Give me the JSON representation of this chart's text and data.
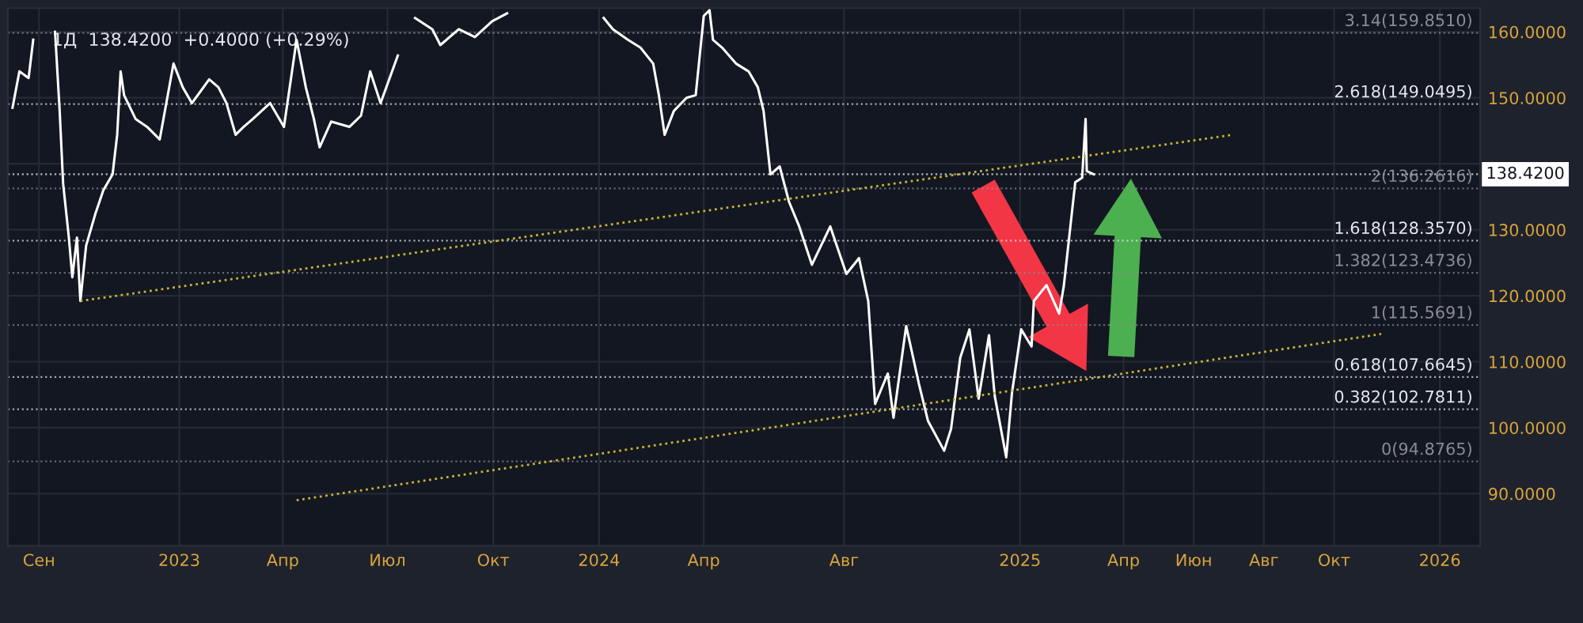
{
  "chart_data": {
    "type": "line",
    "title": "1Д  138.4200  +0.4000 (+0.29%)",
    "xlim": [
      "2022-08-05",
      "2026-02-05"
    ],
    "ylim": [
      82.1,
      163.6
    ],
    "xticks": [
      {
        "value": "2022-09-01",
        "label": "Сен"
      },
      {
        "value": "2023-01-01",
        "label": "2023"
      },
      {
        "value": "2023-04-01",
        "label": "Апр"
      },
      {
        "value": "2023-07-01",
        "label": "Июл"
      },
      {
        "value": "2023-10-01",
        "label": "Окт"
      },
      {
        "value": "2024-01-01",
        "label": "2024"
      },
      {
        "value": "2024-04-01",
        "label": "Апр"
      },
      {
        "value": "2024-08-01",
        "label": "Авг"
      },
      {
        "value": "2025-01-01",
        "label": "2025"
      },
      {
        "value": "2025-04-01",
        "label": "Апр"
      },
      {
        "value": "2025-06-01",
        "label": "Июн"
      },
      {
        "value": "2025-08-01",
        "label": "Авг"
      },
      {
        "value": "2025-10-01",
        "label": "Окт"
      },
      {
        "value": "2026-01-01",
        "label": "2026"
      }
    ],
    "yticks": [
      {
        "value": 90,
        "label": "90.0000"
      },
      {
        "value": 100,
        "label": "100.0000"
      },
      {
        "value": 110,
        "label": "110.0000"
      },
      {
        "value": 120,
        "label": "120.0000"
      },
      {
        "value": 130,
        "label": "130.0000"
      },
      {
        "value": 140,
        "label": null
      },
      {
        "value": 150,
        "label": "150.0000"
      },
      {
        "value": 160,
        "label": "160.0000"
      }
    ],
    "grid": true,
    "marker": "none",
    "series": [
      {
        "color": "#ffffff",
        "line_style": "solid",
        "x": [
          "2022-08-09",
          "2022-08-15",
          "2022-08-23",
          "2022-08-27",
          "2022-09-03",
          "2022-09-15",
          "2022-09-19",
          "2022-09-22",
          "2022-09-27",
          "2022-09-30",
          "2022-10-04",
          "2022-10-07",
          "2022-10-12",
          "2022-10-20",
          "2022-10-27",
          "2022-11-04",
          "2022-11-08",
          "2022-11-11",
          "2022-11-14",
          "2022-11-24",
          "2022-12-04",
          "2022-12-15",
          "2022-12-27",
          "2023-01-04",
          "2023-01-12",
          "2023-01-27",
          "2023-02-04",
          "2023-02-11",
          "2023-02-19",
          "2023-02-26",
          "2023-03-06",
          "2023-03-21",
          "2023-04-02",
          "2023-04-13",
          "2023-04-21",
          "2023-04-28",
          "2023-05-03",
          "2023-05-13",
          "2023-05-29",
          "2023-06-08",
          "2023-06-16",
          "2023-06-25",
          "2023-07-10",
          "2023-07-17",
          "2023-07-25",
          "2023-08-09",
          "2023-08-16",
          "2023-09-01",
          "2023-09-15",
          "2023-09-30",
          "2023-10-13",
          "2023-11-20",
          "2024-01-05",
          "2024-01-13",
          "2024-01-26",
          "2024-02-06",
          "2024-02-17",
          "2024-02-22",
          "2024-02-27",
          "2024-03-06",
          "2024-03-17",
          "2024-03-25",
          "2024-04-01",
          "2024-04-06",
          "2024-04-09",
          "2024-04-17",
          "2024-04-29",
          "2024-05-10",
          "2024-05-18",
          "2024-05-23",
          "2024-05-29",
          "2024-06-06",
          "2024-06-14",
          "2024-06-23",
          "2024-07-04",
          "2024-07-20",
          "2024-08-03",
          "2024-08-14",
          "2024-08-22",
          "2024-08-28",
          "2024-09-08",
          "2024-09-13",
          "2024-09-24",
          "2024-10-05",
          "2024-10-13",
          "2024-10-27",
          "2024-11-02",
          "2024-11-10",
          "2024-11-18",
          "2024-11-26",
          "2024-12-05",
          "2024-12-10",
          "2024-12-20",
          "2024-12-25",
          "2025-01-02",
          "2025-01-11",
          "2025-01-13",
          "2025-01-24",
          "2025-02-04",
          "2025-02-08",
          "2025-02-18",
          "2025-02-24",
          "2025-02-27",
          "2025-02-28",
          "2025-03-06"
        ],
        "values": [
          148.5,
          154,
          153,
          158.8,
          null,
          160,
          148,
          137,
          128.8,
          122.8,
          128.8,
          119.2,
          127.6,
          132.4,
          136,
          138.4,
          144.4,
          154,
          150.4,
          146.8,
          145.6,
          143.7,
          155.2,
          151.6,
          149.2,
          152.8,
          151.6,
          149.2,
          144.4,
          145.6,
          146.8,
          149.2,
          145.6,
          158.8,
          151.6,
          146.8,
          142.5,
          146.4,
          145.6,
          147.3,
          154,
          149.2,
          156.4,
          null,
          162.1,
          160.4,
          158,
          160.4,
          159.2,
          161.6,
          162.8,
          null,
          162.1,
          160.4,
          158.8,
          157.6,
          155.2,
          150.4,
          144.4,
          148,
          150,
          150.4,
          162.4,
          163.3,
          158.8,
          157.6,
          155.2,
          154,
          151.6,
          148,
          138.4,
          139.6,
          134.3,
          130.5,
          124.7,
          130.5,
          123.3,
          125.7,
          119.2,
          103.6,
          108.2,
          101.5,
          115.4,
          106.7,
          101,
          96.5,
          99.8,
          110.6,
          114.9,
          104.4,
          114,
          104.8,
          95.5,
          105.3,
          114.9,
          112.3,
          119.2,
          121.6,
          117.3,
          121.4,
          137.2,
          137.9,
          146.8,
          138.9,
          138.4
        ]
      },
      {
        "type": "line",
        "color": "#c8b631",
        "line_style": "dotted",
        "x": [
          "2022-10-07",
          "2025-07-05"
        ],
        "values": [
          119.2,
          144.4
        ]
      },
      {
        "type": "line",
        "color": "#c8b631",
        "line_style": "dotted",
        "x": [
          "2023-04-13",
          "2025-11-11"
        ],
        "values": [
          89.0,
          114.2
        ]
      }
    ],
    "ref_lines": [
      {
        "axis": "y",
        "value": 159.851,
        "label": "3.14(159.8510)",
        "color": "#8a8d96",
        "line_style": "dotted"
      },
      {
        "axis": "y",
        "value": 149.0495,
        "label": "2.618(149.0495)",
        "color": "#e6e8ee",
        "line_style": "dotted"
      },
      {
        "axis": "y",
        "value": 136.2616,
        "label": "2(136.2616)",
        "color": "#8a8d96",
        "line_style": "dotted"
      },
      {
        "axis": "y",
        "value": 128.357,
        "label": "1.618(128.3570)",
        "color": "#e6e8ee",
        "line_style": "dotted"
      },
      {
        "axis": "y",
        "value": 123.4736,
        "label": "1.382(123.4736)",
        "color": "#8a8d96",
        "line_style": "dotted"
      },
      {
        "axis": "y",
        "value": 115.5691,
        "label": "1(115.5691)",
        "color": "#8a8d96",
        "line_style": "dotted"
      },
      {
        "axis": "y",
        "value": 107.6645,
        "label": "0.618(107.6645)",
        "color": "#e6e8ee",
        "line_style": "dotted"
      },
      {
        "axis": "y",
        "value": 102.7811,
        "label": "0.382(102.7811)",
        "color": "#e6e8ee",
        "line_style": "dotted"
      },
      {
        "axis": "y",
        "value": 94.8765,
        "label": "0(94.8765)",
        "color": "#8a8d96",
        "line_style": "dotted"
      },
      {
        "axis": "y",
        "value": 138.42,
        "label": "138.4200",
        "color": "#ffffff",
        "line_style": "dotted"
      }
    ]
  }
}
